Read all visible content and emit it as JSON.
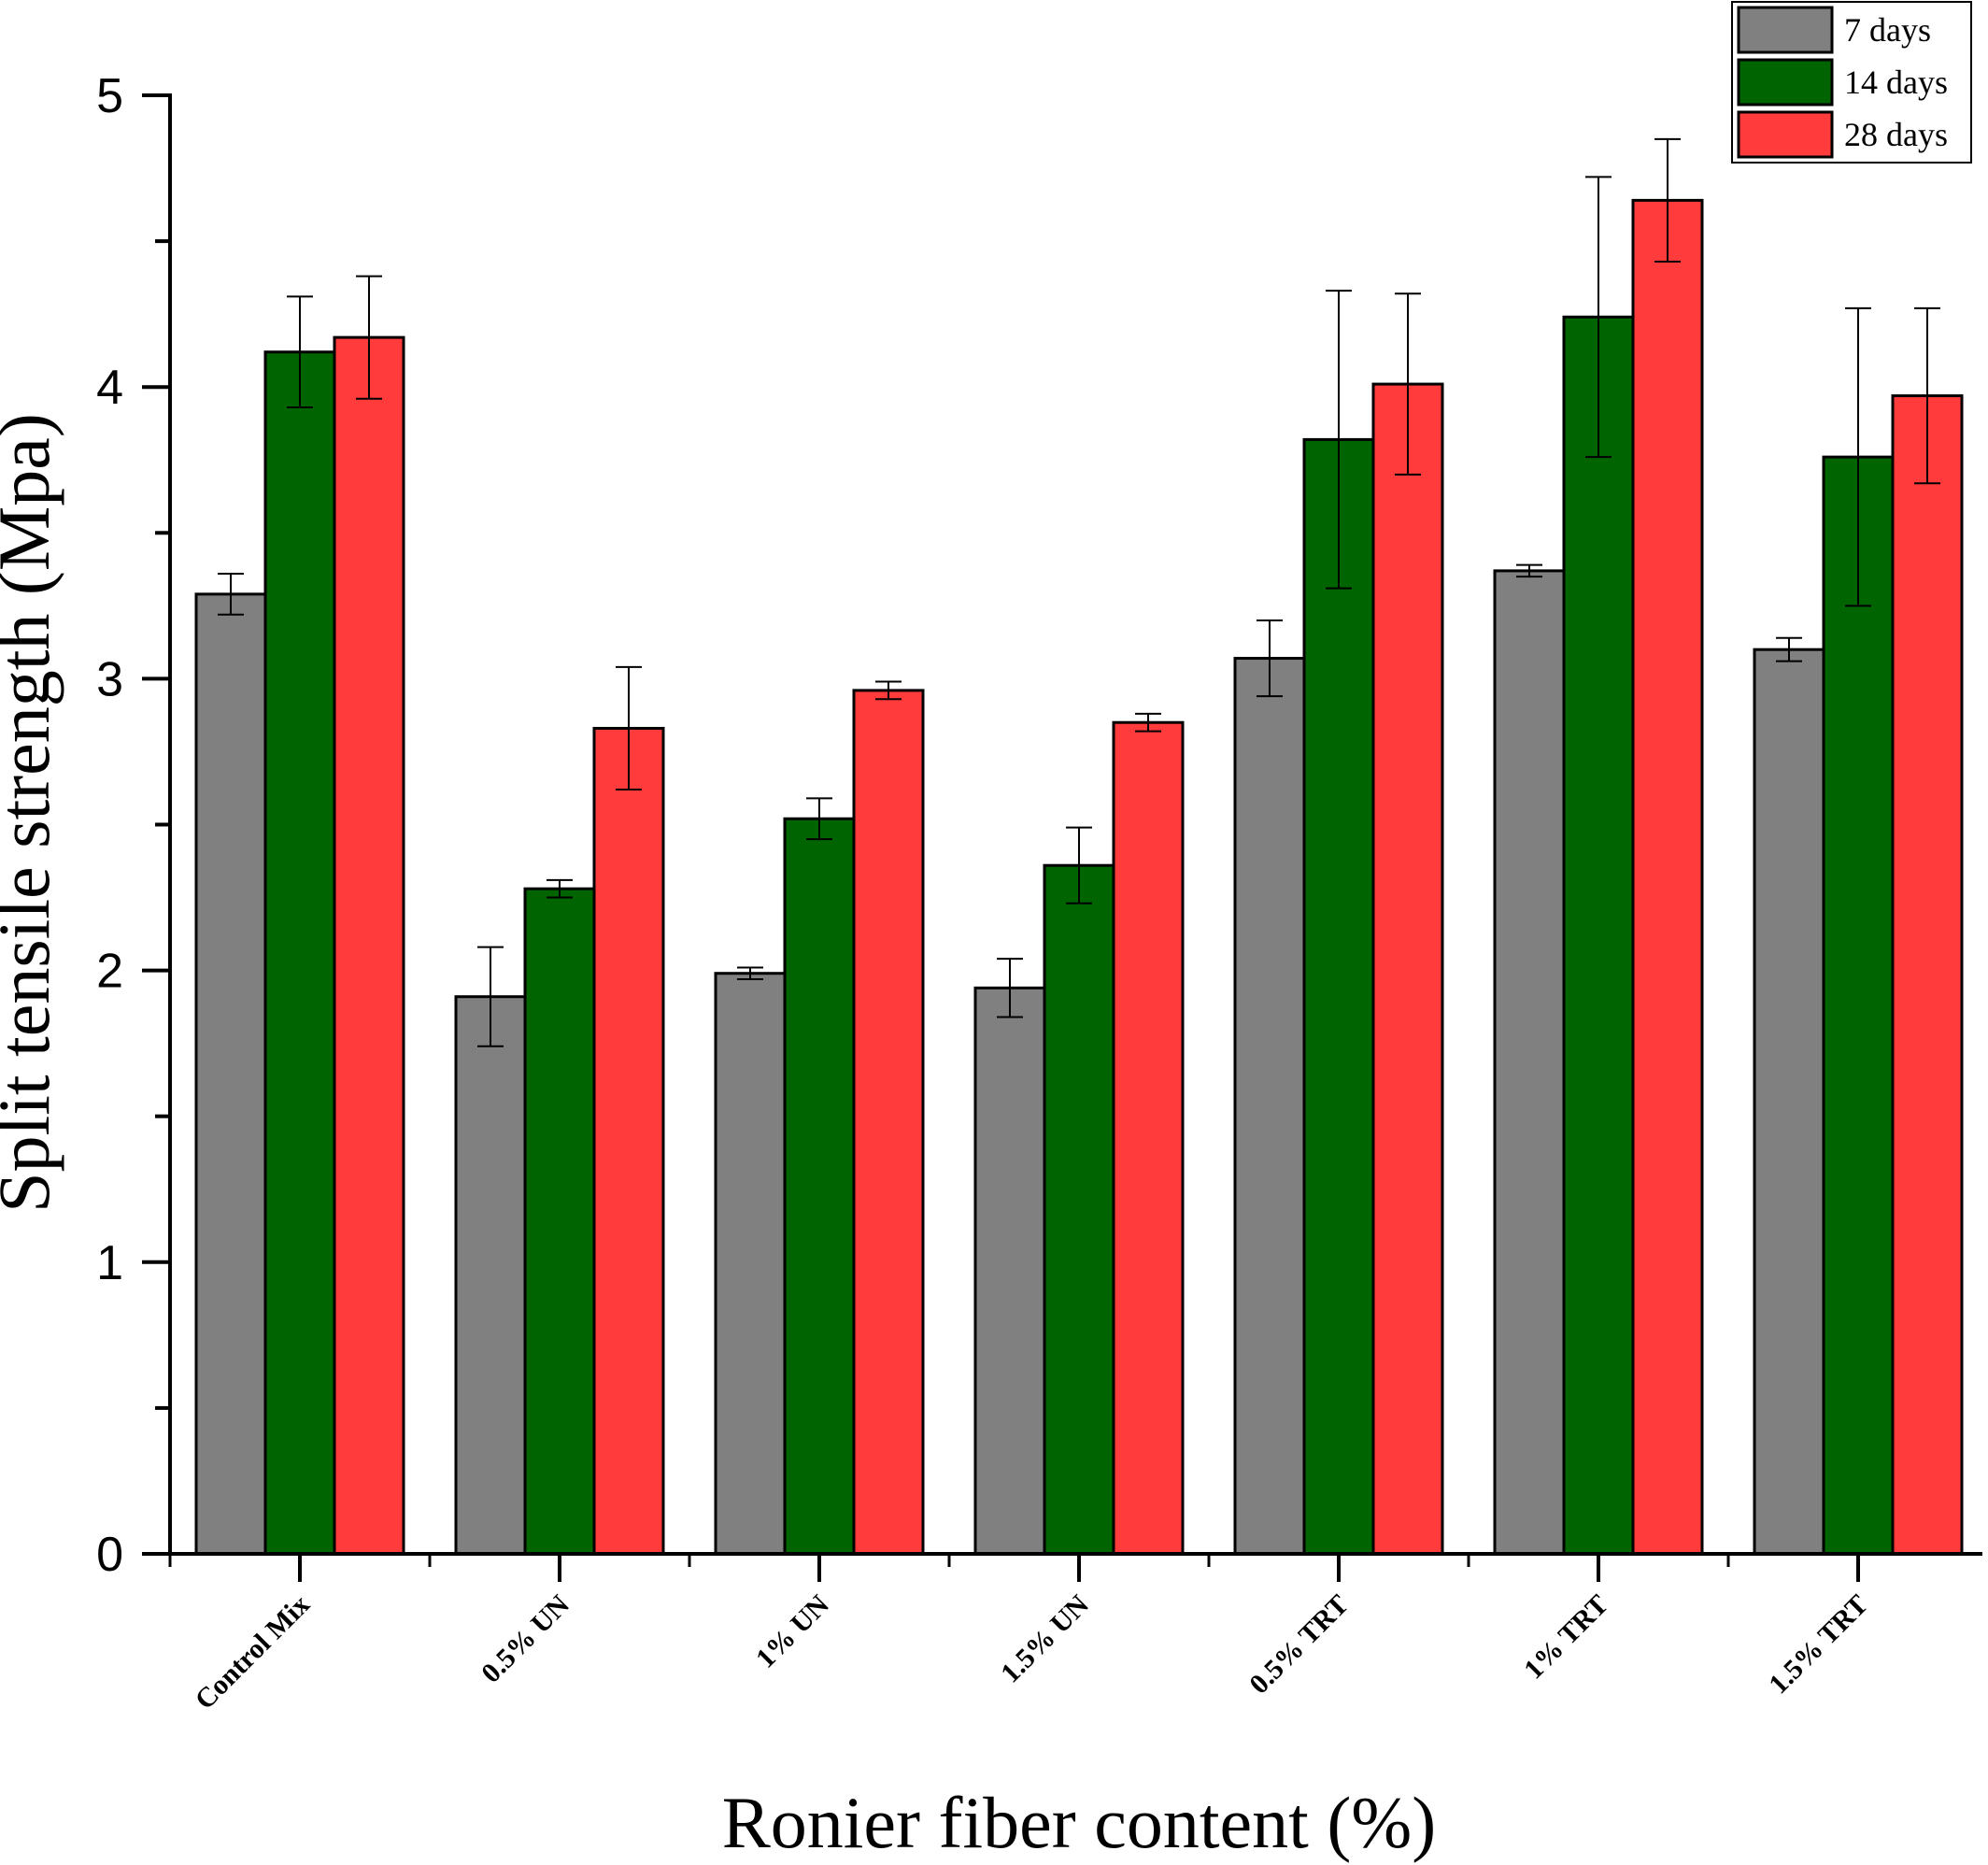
{
  "chart_data": {
    "type": "bar",
    "xlabel": "Ronier fiber content (%)",
    "ylabel": "Split tensile strength (Mpa)",
    "ylim": [
      0,
      5
    ],
    "yticks": [
      "0",
      "1",
      "2",
      "3",
      "4",
      "5"
    ],
    "categories": [
      "Control Mix",
      "0.5% UN",
      "1% UN",
      "1.5% UN",
      "0.5% TRT",
      "1% TRT",
      "1.5% TRT"
    ],
    "series": [
      {
        "name": "7 days",
        "color": "#808080",
        "values": [
          3.29,
          1.91,
          1.99,
          1.94,
          3.07,
          3.37,
          3.1
        ],
        "errors": [
          0.07,
          0.17,
          0.02,
          0.1,
          0.13,
          0.02,
          0.04
        ]
      },
      {
        "name": "14 days",
        "color": "#006400",
        "values": [
          4.12,
          2.28,
          2.52,
          2.36,
          3.82,
          4.24,
          3.76
        ],
        "errors": [
          0.19,
          0.03,
          0.07,
          0.13,
          0.51,
          0.48,
          0.51
        ]
      },
      {
        "name": "28 days",
        "color": "#FF3B3B",
        "values": [
          4.17,
          2.83,
          2.96,
          2.85,
          4.01,
          4.64,
          3.97
        ],
        "errors": [
          0.21,
          0.21,
          0.03,
          0.03,
          0.31,
          0.21,
          0.3
        ]
      }
    ],
    "grid": false,
    "legend": "top-right",
    "error_bars": true
  }
}
